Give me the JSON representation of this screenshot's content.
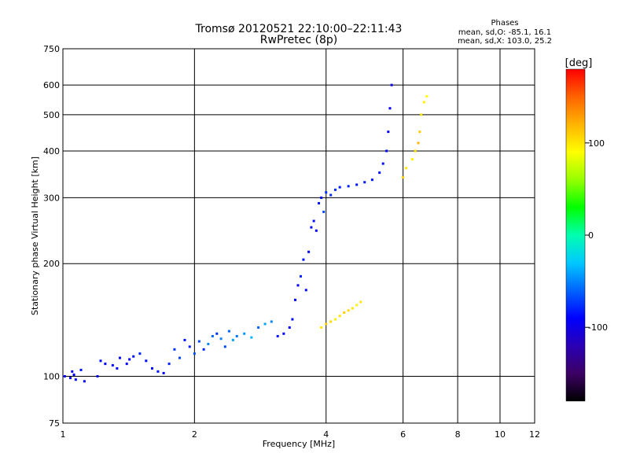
{
  "chart_data": {
    "type": "scatter",
    "title": "Tromsø 20120521 22:10:00–22:11:43",
    "subtitle": "RwPretec (8p)",
    "phase_header": "Phases",
    "phase_line1": "mean, sd,O: -85.1, 16.1",
    "phase_line2": "mean, sd,X: 103.0, 25.2",
    "xlabel": "Frequency [MHz]",
    "ylabel": "Stationary phase Virtual Height [km]",
    "x_scale": "log",
    "y_scale": "log",
    "xlim": [
      1,
      12
    ],
    "ylim": [
      75,
      750
    ],
    "x_ticks": [
      1,
      2,
      4,
      6,
      8,
      10,
      12
    ],
    "x_tick_labels": [
      "1",
      "2",
      "4",
      "6",
      "8",
      "10",
      "12"
    ],
    "y_ticks": [
      75,
      100,
      200,
      300,
      400,
      500,
      600,
      750
    ],
    "y_tick_labels": [
      "75",
      "100",
      "200",
      "300",
      "400",
      "500",
      "600",
      "750"
    ],
    "grid": true,
    "colorbar": {
      "label": "[deg]",
      "range": [
        -180,
        180
      ],
      "ticks": [
        100,
        0,
        -100
      ],
      "tick_labels": [
        "100",
        "0",
        "-100"
      ],
      "colors": [
        "#000000",
        "#3c0064",
        "#2a00b4",
        "#0000ff",
        "#0064ff",
        "#00c8ff",
        "#00ffb0",
        "#00ff00",
        "#96ff00",
        "#ffff00",
        "#ffb400",
        "#ff6400",
        "#ff0000"
      ]
    },
    "series": [
      {
        "x": [
          1.01,
          1.04,
          1.05,
          1.06,
          1.07,
          1.1,
          1.12,
          1.2,
          1.22,
          1.25,
          1.3,
          1.33,
          1.35,
          1.4,
          1.42,
          1.45,
          1.5,
          1.55,
          1.6,
          1.65,
          1.7,
          1.75,
          1.8,
          1.85,
          1.9,
          1.95,
          2.0,
          2.05,
          2.1,
          2.15,
          2.2,
          2.25,
          2.3,
          2.35,
          2.4,
          2.45,
          2.5,
          2.6,
          2.7,
          2.8,
          2.9,
          3.0
        ],
        "y": [
          100,
          99,
          103,
          101,
          98,
          104,
          97,
          100,
          110,
          108,
          107,
          105,
          112,
          108,
          111,
          113,
          115,
          110,
          105,
          103,
          102,
          108,
          118,
          112,
          125,
          120,
          115,
          124,
          118,
          122,
          128,
          130,
          126,
          120,
          132,
          125,
          128,
          130,
          127,
          135,
          138,
          140
        ],
        "phase": [
          -90,
          -95,
          -88,
          -92,
          -90,
          -85,
          -93,
          -88,
          -90,
          -92,
          -86,
          -90,
          -88,
          -92,
          -90,
          -85,
          -80,
          -88,
          -90,
          -85,
          -92,
          -80,
          -75,
          -70,
          -85,
          -80,
          -65,
          -70,
          -80,
          -50,
          -60,
          -75,
          -50,
          -70,
          -60,
          -40,
          -55,
          -45,
          -35,
          -60,
          -40,
          -50
        ]
      },
      {
        "x": [
          3.1,
          3.2,
          3.3,
          3.35,
          3.4,
          3.45,
          3.5,
          3.55,
          3.6,
          3.65,
          3.7,
          3.75,
          3.8,
          3.85,
          3.9,
          3.95
        ],
        "y": [
          128,
          130,
          135,
          142,
          160,
          175,
          185,
          205,
          170,
          215,
          250,
          260,
          245,
          290,
          300,
          275
        ],
        "phase": [
          -85,
          -90,
          -92,
          -88,
          -90,
          -95,
          -80,
          -85,
          -88,
          -90,
          -92,
          -86,
          -90,
          -84,
          -88,
          -70
        ]
      },
      {
        "x": [
          4.0,
          4.1,
          4.2,
          4.3,
          4.5,
          4.7,
          4.9,
          5.1,
          5.3,
          5.4,
          5.5,
          5.55,
          5.6,
          5.65
        ],
        "y": [
          310,
          305,
          315,
          320,
          322,
          325,
          330,
          335,
          350,
          370,
          400,
          450,
          520,
          600
        ],
        "phase": [
          -75,
          -80,
          -78,
          -82,
          -80,
          -85,
          -82,
          -84,
          -86,
          -88,
          -90,
          -92,
          -95,
          -100
        ]
      },
      {
        "x": [
          3.9,
          4.0,
          4.1,
          4.2,
          4.3,
          4.4,
          4.5,
          4.6,
          4.7,
          4.8
        ],
        "y": [
          135,
          138,
          140,
          142,
          145,
          148,
          150,
          152,
          155,
          158
        ],
        "phase": [
          100,
          110,
          105,
          95,
          100,
          110,
          105,
          100,
          95,
          100
        ]
      },
      {
        "x": [
          6.0,
          6.1,
          6.3,
          6.4,
          6.5,
          6.55,
          6.6,
          6.7,
          6.8
        ],
        "y": [
          340,
          360,
          380,
          400,
          420,
          450,
          500,
          540,
          560
        ],
        "phase": [
          110,
          100,
          95,
          105,
          120,
          110,
          100,
          95,
          90
        ]
      }
    ]
  }
}
